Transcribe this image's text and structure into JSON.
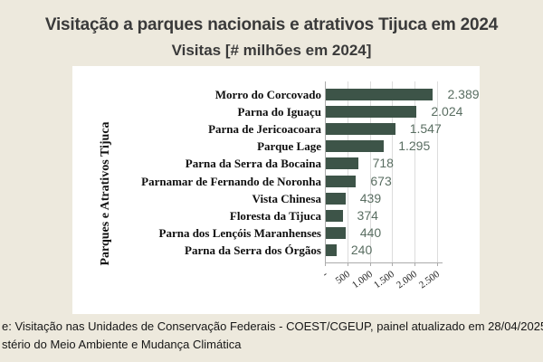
{
  "page": {
    "background": "#EDE9DD",
    "title": "Visitação a parques nacionais e atrativos Tijuca em 2024",
    "subtitle": "Visitas [# milhões em 2024]",
    "footer_line1": "e: Visitação nas Unidades de Conservação Federais - COEST/CGEUP, painel atualizado em 28/04/2025, ICM",
    "footer_line2": "stério do Meio Ambiente e Mudança Climática"
  },
  "chart_data": {
    "type": "bar",
    "orientation": "horizontal",
    "title": "Visitação a parques nacionais e atrativos Tijuca em 2024",
    "subtitle": "Visitas [# milhões em 2024]",
    "ylabel": "Parques e Atrativos Tijuca",
    "xlabel": "",
    "categories": [
      "Morro do Corcovado",
      "Parna do Iguaçu",
      "Parna de Jericoacoara",
      "Parque Lage",
      "Parna da Serra da Bocaina",
      "Parnamar de Fernando de Noronha",
      "Vista Chinesa",
      "Floresta da Tijuca",
      "Parna dos Lençóis Maranhenses",
      "Parna da Serra dos Órgãos"
    ],
    "values": [
      2389,
      2024,
      1547,
      1295,
      718,
      673,
      439,
      374,
      440,
      240
    ],
    "value_labels": [
      "2.389",
      "2.024",
      "1.547",
      "1.295",
      "718",
      "673",
      "439",
      "374",
      "440",
      "240"
    ],
    "x_ticks": [
      "-",
      "500",
      "1.000",
      "1.500",
      "2.000",
      "2.500"
    ],
    "x_tick_values": [
      0,
      500,
      1000,
      1500,
      2000,
      2500
    ],
    "xlim": [
      0,
      2500
    ],
    "grid": true,
    "legend": false,
    "colors": {
      "bar": "#3D5448",
      "value_label": "#5A6E62",
      "gridline": "#DCDCDC",
      "axis": "#ABABAB",
      "plot_background": "#FFFFFF"
    }
  }
}
